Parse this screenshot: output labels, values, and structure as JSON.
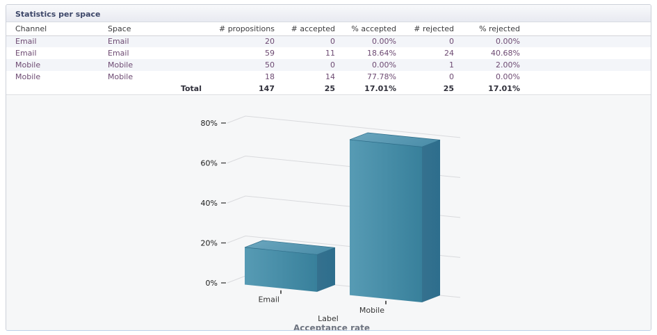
{
  "panel": {
    "title": "Statistics per space"
  },
  "table": {
    "columns": [
      "Channel",
      "Space",
      "# propositions",
      "# accepted",
      "% accepted",
      "# rejected",
      "% rejected"
    ],
    "rows": [
      [
        "Email",
        "Email",
        "20",
        "0",
        "0.00%",
        "0",
        "0.00%"
      ],
      [
        "Email",
        "Email",
        "59",
        "11",
        "18.64%",
        "24",
        "40.68%"
      ],
      [
        "Mobile",
        "Mobile",
        "50",
        "0",
        "0.00%",
        "1",
        "2.00%"
      ],
      [
        "Mobile",
        "Mobile",
        "18",
        "14",
        "77.78%",
        "0",
        "0.00%"
      ]
    ],
    "total": {
      "label": "Total",
      "values": [
        "147",
        "25",
        "17.01%",
        "25",
        "17.01%"
      ]
    }
  },
  "chart_data": {
    "type": "bar",
    "style": "3d",
    "title": "Acceptance rate",
    "xlabel": "Label",
    "categories": [
      "Email",
      "Mobile"
    ],
    "values": [
      18.64,
      77.78
    ],
    "unit": "%",
    "ylim": [
      0,
      80
    ],
    "ytick_values": [
      0,
      20,
      40,
      60,
      80
    ],
    "yticks": [
      "0%",
      "20%",
      "40%",
      "60%",
      "80%"
    ],
    "grid": true,
    "legend": false,
    "colors": {
      "front_light": "#579bb4",
      "front_dark": "#38809b",
      "top_light": "#6ca7bf",
      "top_dark": "#4e90ab",
      "side_light": "#35718e",
      "side_dark": "#2d6e8d",
      "edge": "#2d6c88",
      "gridline": "#d9dadd",
      "tick": "#4a4a4a",
      "tick_label": "#1a1a1a",
      "cat_label": "#333333",
      "axis_title": "#333333",
      "chart_title": "#6e7480"
    }
  }
}
